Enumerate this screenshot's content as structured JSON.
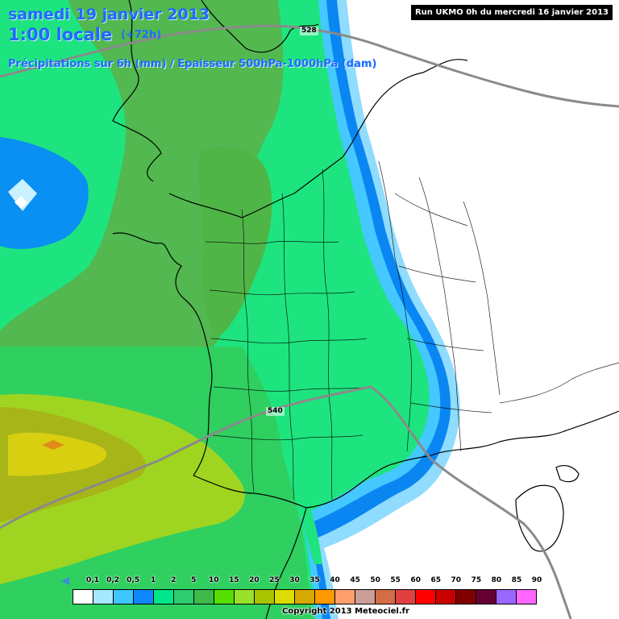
{
  "header": {
    "date": "samedi 19 janvier 2013",
    "time": "1:00 locale",
    "lead": "(+72h)",
    "subtitle": "Précipitations sur 6h (mm) / Epaisseur 500hPa-1000hPa (dam)"
  },
  "run_info": "Run UKMO 0h du mercredi 16 janvier 2013",
  "isolines": [
    "528",
    "540"
  ],
  "legend": {
    "labels": [
      "0,1",
      "0,2",
      "0,5",
      "1",
      "2",
      "5",
      "10",
      "15",
      "20",
      "25",
      "30",
      "35",
      "40",
      "45",
      "50",
      "55",
      "60",
      "65",
      "70",
      "75",
      "80",
      "85",
      "90"
    ],
    "colors": [
      "#ffffff",
      "#a6e8ff",
      "#3fc6ff",
      "#0f87ff",
      "#00e68a",
      "#2ecc71",
      "#3fb94c",
      "#55e000",
      "#9ae02c",
      "#a8c400",
      "#dcdc00",
      "#d6a800",
      "#ff9900",
      "#ff9f6e",
      "#cc9e98",
      "#d46c46",
      "#e04040",
      "#ff0000",
      "#c80000",
      "#800000",
      "#660033",
      "#9966ff",
      "#ff66ff"
    ]
  },
  "copyright": "Copyright 2013 Meteociel.fr",
  "palette": {
    "coastal_blue": "#0a86f2",
    "light_blue": "#8fdcff",
    "green_light": "#1ce887",
    "green_mid": "#37c767",
    "olive_green": "#57b64c",
    "yellow_green": "#9fd520",
    "olive": "#a7b519",
    "orange_core": "#e08a18",
    "land_white": "#ffffff"
  }
}
